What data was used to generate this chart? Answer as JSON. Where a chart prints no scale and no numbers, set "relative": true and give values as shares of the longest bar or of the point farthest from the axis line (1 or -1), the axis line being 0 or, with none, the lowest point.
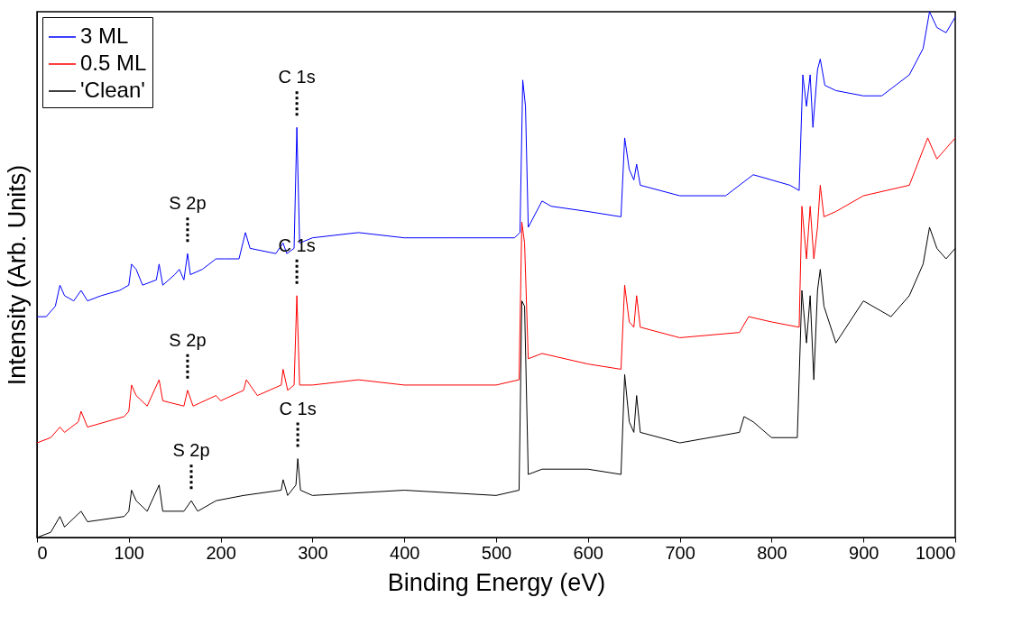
{
  "chart_data": {
    "type": "line",
    "relative": true,
    "xlabel": "Binding Energy (eV)",
    "ylabel": "Intensity (Arb. Units)",
    "xlim": [
      0,
      1000
    ],
    "xticks": [
      0,
      100,
      200,
      300,
      400,
      500,
      600,
      700,
      800,
      900,
      1000
    ],
    "grid": false,
    "legend": "top left",
    "marker": "none",
    "line_style": "solid",
    "tick_labels": "x",
    "series": [
      {
        "name": "3 ML",
        "color": "#0000ff",
        "x": [
          0,
          10,
          20,
          25,
          30,
          40,
          48,
          55,
          70,
          90,
          100,
          103,
          108,
          115,
          130,
          133,
          137,
          150,
          155,
          160,
          164,
          167,
          180,
          195,
          205,
          220,
          227,
          232,
          260,
          268,
          272,
          280,
          283,
          286,
          300,
          350,
          400,
          450,
          500,
          520,
          526,
          529,
          532,
          535,
          550,
          560,
          600,
          636,
          640,
          645,
          650,
          653,
          657,
          700,
          750,
          780,
          820,
          830,
          834,
          838,
          842,
          845,
          850,
          853,
          858,
          870,
          900,
          920,
          950,
          965,
          972,
          980,
          990,
          1000
        ],
        "values": [
          0.42,
          0.42,
          0.44,
          0.48,
          0.46,
          0.45,
          0.47,
          0.45,
          0.46,
          0.47,
          0.48,
          0.52,
          0.51,
          0.48,
          0.49,
          0.52,
          0.48,
          0.5,
          0.51,
          0.49,
          0.54,
          0.5,
          0.51,
          0.53,
          0.53,
          0.53,
          0.58,
          0.55,
          0.54,
          0.56,
          0.54,
          0.55,
          0.78,
          0.56,
          0.57,
          0.58,
          0.57,
          0.57,
          0.57,
          0.57,
          0.58,
          0.87,
          0.82,
          0.59,
          0.64,
          0.63,
          0.62,
          0.61,
          0.76,
          0.7,
          0.68,
          0.71,
          0.67,
          0.65,
          0.65,
          0.69,
          0.67,
          0.66,
          0.88,
          0.82,
          0.88,
          0.78,
          0.89,
          0.91,
          0.86,
          0.85,
          0.84,
          0.84,
          0.88,
          0.93,
          1,
          0.97,
          0.96,
          0.99
        ]
      },
      {
        "name": "0.5 ML",
        "color": "#ff0000",
        "x": [
          0,
          15,
          25,
          30,
          45,
          48,
          55,
          95,
          100,
          103,
          108,
          120,
          133,
          137,
          160,
          164,
          170,
          195,
          200,
          225,
          228,
          240,
          266,
          268,
          273,
          280,
          283,
          286,
          300,
          350,
          400,
          500,
          525,
          528,
          531,
          535,
          550,
          600,
          636,
          640,
          645,
          650,
          653,
          657,
          700,
          765,
          775,
          800,
          830,
          833,
          838,
          842,
          846,
          850,
          853,
          857,
          870,
          900,
          950,
          970,
          980,
          1000
        ],
        "values": [
          0.18,
          0.19,
          0.21,
          0.2,
          0.22,
          0.24,
          0.21,
          0.23,
          0.24,
          0.29,
          0.27,
          0.25,
          0.3,
          0.26,
          0.25,
          0.28,
          0.25,
          0.27,
          0.26,
          0.28,
          0.3,
          0.27,
          0.29,
          0.32,
          0.28,
          0.29,
          0.46,
          0.29,
          0.29,
          0.3,
          0.29,
          0.29,
          0.3,
          0.6,
          0.56,
          0.34,
          0.35,
          0.33,
          0.32,
          0.48,
          0.41,
          0.4,
          0.46,
          0.4,
          0.38,
          0.39,
          0.42,
          0.41,
          0.4,
          0.63,
          0.53,
          0.63,
          0.53,
          0.59,
          0.67,
          0.61,
          0.62,
          0.65,
          0.67,
          0.76,
          0.72,
          0.76
        ]
      },
      {
        "name": "'Clean'",
        "color": "#000000",
        "x": [
          0,
          15,
          25,
          30,
          48,
          55,
          95,
          100,
          103,
          108,
          120,
          133,
          137,
          160,
          168,
          175,
          195,
          225,
          266,
          268,
          273,
          282,
          284,
          287,
          300,
          400,
          500,
          525,
          528,
          531,
          535,
          550,
          600,
          636,
          640,
          645,
          650,
          653,
          657,
          700,
          765,
          770,
          780,
          800,
          828,
          833,
          838,
          842,
          846,
          850,
          853,
          857,
          870,
          900,
          930,
          950,
          965,
          972,
          980,
          990,
          1000
        ],
        "values": [
          0,
          0.01,
          0.04,
          0.02,
          0.05,
          0.03,
          0.04,
          0.05,
          0.09,
          0.07,
          0.05,
          0.1,
          0.05,
          0.05,
          0.07,
          0.05,
          0.07,
          0.08,
          0.09,
          0.11,
          0.08,
          0.1,
          0.15,
          0.09,
          0.08,
          0.09,
          0.08,
          0.09,
          0.45,
          0.44,
          0.12,
          0.13,
          0.13,
          0.12,
          0.31,
          0.22,
          0.2,
          0.27,
          0.2,
          0.18,
          0.2,
          0.23,
          0.22,
          0.19,
          0.19,
          0.47,
          0.37,
          0.46,
          0.3,
          0.47,
          0.51,
          0.44,
          0.37,
          0.45,
          0.42,
          0.46,
          0.52,
          0.59,
          0.55,
          0.53,
          0.55
        ]
      }
    ],
    "annotations": [
      {
        "text": "C 1s",
        "x": 283,
        "y": 0.78
      },
      {
        "text": "S 2p",
        "x": 164,
        "y": 0.54
      },
      {
        "text": "C 1s",
        "x": 283,
        "y": 0.46
      },
      {
        "text": "S 2p",
        "x": 164,
        "y": 0.28
      },
      {
        "text": "C 1s",
        "x": 284,
        "y": 0.15
      },
      {
        "text": "S 2p",
        "x": 168,
        "y": 0.07
      }
    ]
  }
}
